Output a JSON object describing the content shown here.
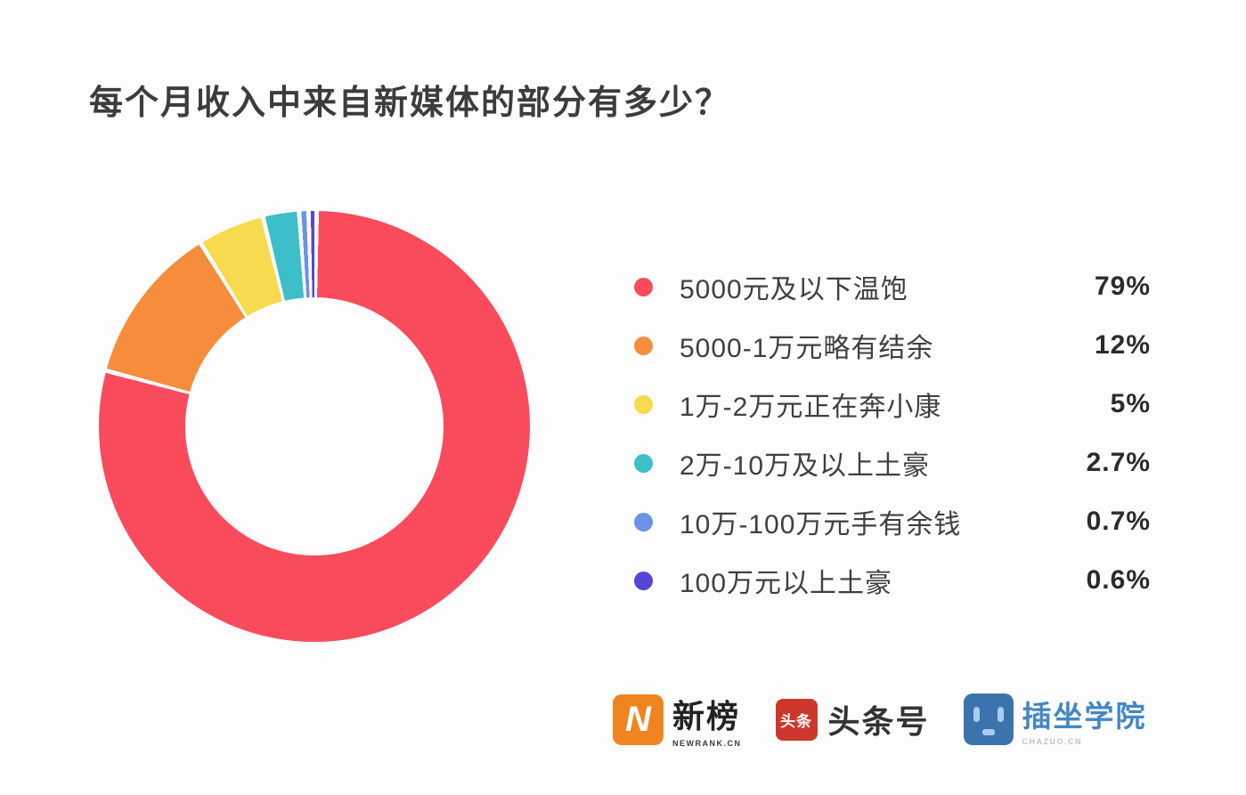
{
  "page": {
    "background": "#fdfdfd"
  },
  "title": "每个月收入中来自新媒体的部分有多少？",
  "chart_data": {
    "type": "pie",
    "subtype": "donut",
    "title": "每个月收入中来自新媒体的部分有多少？",
    "legend_position": "right",
    "start_angle_deg": 0,
    "direction": "clockwise",
    "inner_radius_ratio": 0.6,
    "gap_deg": 1.2,
    "segments": [
      {
        "label": "5000元及以下温饱",
        "value_pct": 79,
        "display": "79%",
        "color": "#fa4b5c"
      },
      {
        "label": "5000-1万元略有结余",
        "value_pct": 12,
        "display": "12%",
        "color": "#f68d3d"
      },
      {
        "label": "1万-2万元正在奔小康",
        "value_pct": 5,
        "display": "5%",
        "color": "#f8da4e"
      },
      {
        "label": "2万-10万及以上土豪",
        "value_pct": 2.7,
        "display": "2.7%",
        "color": "#3dbfc9"
      },
      {
        "label": "10万-100万元手有余钱",
        "value_pct": 0.7,
        "display": "0.7%",
        "color": "#6a93e8"
      },
      {
        "label": "100万元以上土豪",
        "value_pct": 0.6,
        "display": "0.6%",
        "color": "#5247d6"
      }
    ]
  },
  "footer": {
    "logos": [
      {
        "name": "newrank",
        "badge_letter": "N",
        "badge_color": "#f0841e",
        "title": "新榜",
        "subtitle": "NEWRANK.CN"
      },
      {
        "name": "toutiao",
        "badge_chars": "头条",
        "badge_color": "#ce372c",
        "title": "头条号"
      },
      {
        "name": "chazuo",
        "badge_color": "#3b74ad",
        "title": "插坐学院",
        "subtitle": "CHAZUO.CN"
      }
    ]
  }
}
